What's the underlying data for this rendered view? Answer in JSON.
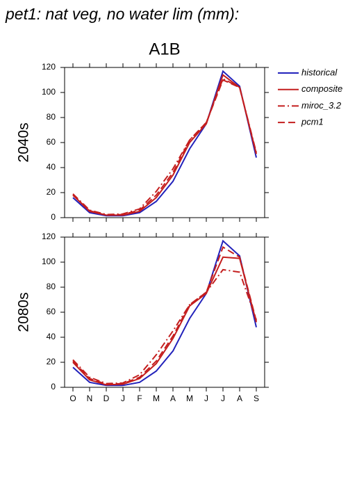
{
  "title": "pet1: nat veg, no water lim (mm):",
  "chart_data": [
    {
      "type": "line",
      "title": "A1B",
      "y_label": "2040s",
      "legend": "right",
      "categories": [
        null,
        null,
        null,
        null,
        null,
        null,
        null,
        null,
        null,
        null,
        null,
        null
      ],
      "ylim": [
        0,
        120
      ],
      "yticks": [
        0,
        20,
        40,
        60,
        80,
        100,
        120
      ],
      "series": [
        {
          "name": "historical",
          "color": "#2222bb",
          "dash": "solid",
          "values": [
            16,
            4,
            1.5,
            1.5,
            4,
            13,
            29,
            55,
            75,
            117,
            105,
            48
          ]
        },
        {
          "name": "composite",
          "color": "#c41e1e",
          "dash": "solid",
          "values": [
            18,
            5,
            2,
            2,
            5,
            16,
            34,
            60,
            75,
            114,
            104,
            51
          ]
        },
        {
          "name": "miroc_3.2",
          "color": "#c41e1e",
          "dash": "dashdot",
          "values": [
            19,
            6,
            2.5,
            3,
            7,
            21,
            39,
            62,
            76,
            111,
            104,
            52
          ]
        },
        {
          "name": "pcm1",
          "color": "#c41e1e",
          "dash": "dash",
          "values": [
            18,
            5.5,
            2,
            2.5,
            6,
            18,
            36,
            62,
            76,
            110,
            104,
            51
          ]
        }
      ]
    },
    {
      "type": "line",
      "y_label": "2080s",
      "categories": [
        "O",
        "N",
        "D",
        "J",
        "F",
        "M",
        "A",
        "M",
        "J",
        "J",
        "A",
        "S"
      ],
      "ylim": [
        0,
        120
      ],
      "yticks": [
        0,
        20,
        40,
        60,
        80,
        100,
        120
      ],
      "series": [
        {
          "color": "#2222bb",
          "dash": "solid",
          "values": [
            16,
            4,
            1.5,
            1.5,
            4,
            13,
            29,
            55,
            75,
            117,
            105,
            48
          ]
        },
        {
          "color": "#c41e1e",
          "dash": "solid",
          "values": [
            20,
            6,
            2,
            2.5,
            7,
            19,
            39,
            65,
            75,
            104,
            103,
            52
          ]
        },
        {
          "color": "#c41e1e",
          "dash": "dashdot",
          "values": [
            22,
            8,
            3,
            3.5,
            10,
            26,
            45,
            66,
            76,
            94,
            92,
            54
          ]
        },
        {
          "color": "#c41e1e",
          "dash": "dash",
          "values": [
            21,
            7,
            2.5,
            3,
            8,
            21,
            41,
            66,
            76,
            112,
            104,
            53
          ]
        }
      ]
    }
  ]
}
